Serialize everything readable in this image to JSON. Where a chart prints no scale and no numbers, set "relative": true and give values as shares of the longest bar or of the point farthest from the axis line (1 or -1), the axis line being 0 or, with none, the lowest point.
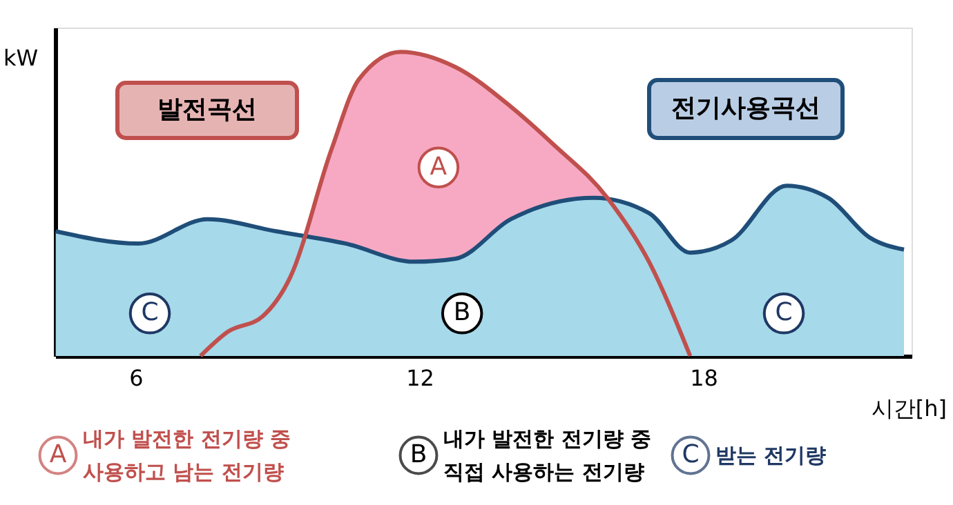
{
  "chart_data": {
    "type": "area",
    "relative": true,
    "xlabel": "시간[h]",
    "ylabel": "kW",
    "xlim": [
      4.3,
      22.4
    ],
    "xticks": [
      6,
      12,
      18
    ],
    "grid": false,
    "legend": false,
    "series": [
      {
        "name": "발전곡선",
        "color": "#f7a9c4",
        "x": [
          7.37,
          7.95,
          8.68,
          9.27,
          10.14,
          10.72,
          11.6,
          12.76,
          13.93,
          14.8,
          15.97,
          16.85,
          17.72
        ],
        "values": [
          0,
          0.08,
          0.13,
          0.26,
          0.68,
          0.91,
          1.0,
          0.95,
          0.82,
          0.7,
          0.52,
          0.31,
          0
        ]
      },
      {
        "name": "전기사용곡선",
        "color": "#a6d9ea",
        "x": [
          4.31,
          6.06,
          7.52,
          8.97,
          10.43,
          11.89,
          12.76,
          13.93,
          15.68,
          16.85,
          17.72,
          18.59,
          19.76,
          20.64,
          21.51,
          22.24
        ],
        "values": [
          0.41,
          0.37,
          0.45,
          0.41,
          0.37,
          0.31,
          0.32,
          0.45,
          0.52,
          0.47,
          0.34,
          0.38,
          0.56,
          0.52,
          0.39,
          0.35
        ]
      }
    ],
    "annotations": [
      {
        "text": "A",
        "x": 12.4,
        "y": 0.62
      },
      {
        "text": "B",
        "x": 12.9,
        "y": 0.14
      },
      {
        "text": "C",
        "x": 6.3,
        "y": 0.14
      },
      {
        "text": "C",
        "x": 19.7,
        "y": 0.14
      },
      "A",
      "내가 발전한 전기량 중\n사용하고 남는 전기량",
      "B",
      "내가 발전한 전기량 중\n직접 사용하는 전기량",
      "C",
      "받는 전기량"
    ]
  }
}
